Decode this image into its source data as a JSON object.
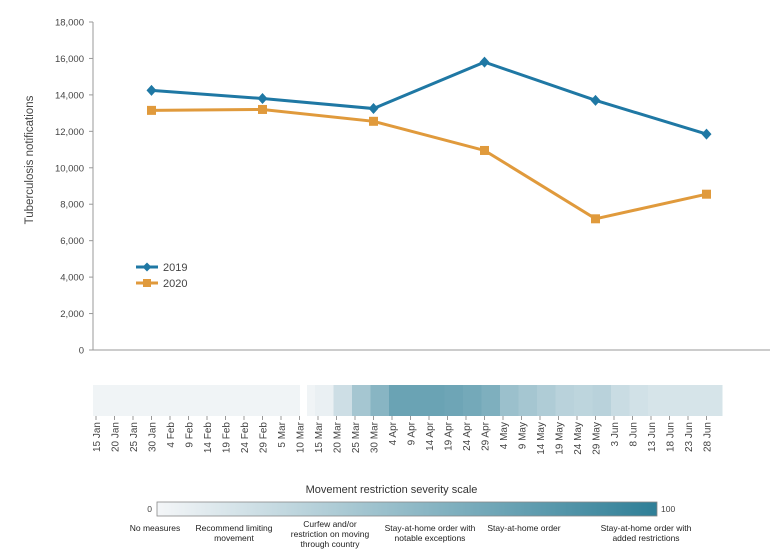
{
  "chart_data": {
    "type": "line",
    "ylabel": "Tuberculosis notifications",
    "ylim": [
      0,
      18000
    ],
    "yticks": [
      "0",
      "2,000",
      "4,000",
      "6,000",
      "8,000",
      "10,000",
      "12,000",
      "14,000",
      "16,000",
      "18,000"
    ],
    "x": [
      "30 Jan",
      "29 Feb",
      "30 Mar",
      "29 Apr",
      "29 May",
      "28 Jun"
    ],
    "series": [
      {
        "name": "2019",
        "color": "#1f78a4",
        "marker": "diamond",
        "values": [
          14250,
          13800,
          13250,
          15800,
          13700,
          11850
        ]
      },
      {
        "name": "2020",
        "color": "#e09a3c",
        "marker": "square",
        "values": [
          13150,
          13200,
          12550,
          10950,
          7200,
          8550
        ]
      }
    ],
    "legend_position": "left-middle"
  },
  "timeline": {
    "dates": [
      "15 Jan",
      "20 Jan",
      "25 Jan",
      "30 Jan",
      "4 Feb",
      "9 Feb",
      "14 Feb",
      "19 Feb",
      "24 Feb",
      "29 Feb",
      "5 Mar",
      "10 Mar",
      "15 Mar",
      "20 Mar",
      "25 Mar",
      "30 Mar",
      "4 Apr",
      "9 Apr",
      "14 Apr",
      "19 Apr",
      "24 Apr",
      "29 Apr",
      "4 May",
      "9 May",
      "14 May",
      "19 May",
      "24 May",
      "29 May",
      "3 Jun",
      "8 Jun",
      "13 Jun",
      "18 Jun",
      "23 Jun",
      "28 Jun"
    ],
    "severity": [
      2,
      2,
      2,
      2,
      2,
      2,
      2,
      2,
      2,
      2,
      2,
      2,
      5,
      20,
      40,
      55,
      70,
      70,
      70,
      68,
      65,
      60,
      45,
      40,
      35,
      30,
      28,
      30,
      22,
      18,
      15,
      15,
      15,
      15
    ]
  },
  "scale": {
    "title": "Movement restriction severity scale",
    "min_label": "0",
    "max_label": "100",
    "color_low": "#f4f6f8",
    "color_high": "#2f7f97",
    "captions": [
      "No measures",
      "Recommend limiting movement",
      "Curfew and/or restriction on moving through country",
      "Stay-at-home order with notable exceptions",
      "Stay-at-home order",
      "Stay-at-home order with added restrictions"
    ]
  }
}
